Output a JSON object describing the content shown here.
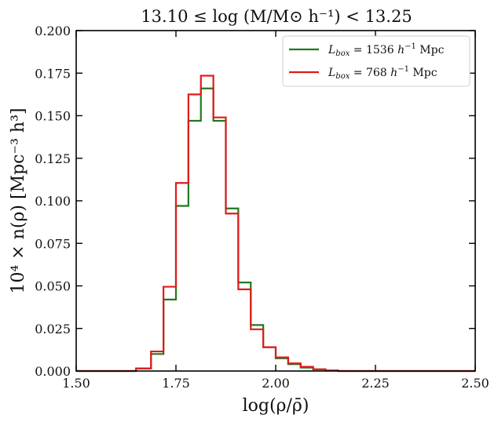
{
  "chart_data": {
    "type": "line",
    "style": "step-histogram",
    "title": "13.10 ≤ log (M/M⊙ h⁻¹) < 13.25",
    "xlabel": "log(ρ/ρ̄)",
    "ylabel": "10⁴ × n(ρ) [Mpc⁻³ h³]",
    "xlim": [
      1.5,
      2.5
    ],
    "ylim": [
      0.0,
      0.2
    ],
    "xticks": [
      "1.50",
      "1.75",
      "2.00",
      "2.25",
      "2.50"
    ],
    "yticks": [
      "0.000",
      "0.025",
      "0.050",
      "0.075",
      "0.100",
      "0.125",
      "0.150",
      "0.175",
      "0.200"
    ],
    "legend_position": "top-right",
    "bin_edges": [
      1.5,
      1.55,
      1.6,
      1.65,
      1.6875,
      1.71875,
      1.75,
      1.78125,
      1.8125,
      1.84375,
      1.875,
      1.90625,
      1.9375,
      1.96875,
      2.0,
      2.03125,
      2.0625,
      2.09375,
      2.125,
      2.15625,
      2.5
    ],
    "series": [
      {
        "name": "L_box = 1536 h⁻¹ Mpc",
        "legend_main": "L",
        "legend_sub": "box",
        "legend_rest": " = 1536 ",
        "legend_unit": "h",
        "legend_sup": "−1",
        "legend_mpc": " Mpc",
        "color": "#1f7a1f",
        "values": [
          0.0,
          0.0,
          0.0,
          0.0015,
          0.01,
          0.042,
          0.097,
          0.147,
          0.166,
          0.147,
          0.0955,
          0.052,
          0.027,
          0.014,
          0.0075,
          0.004,
          0.002,
          0.001,
          0.0003,
          0.0
        ]
      },
      {
        "name": "L_box = 768 h⁻¹ Mpc",
        "legend_main": "L",
        "legend_sub": "box",
        "legend_rest": " = 768 ",
        "legend_unit": "h",
        "legend_sup": "−1",
        "legend_mpc": " Mpc",
        "color": "#e01b1b",
        "values": [
          0.0,
          0.0,
          0.0,
          0.0015,
          0.0115,
          0.0495,
          0.1105,
          0.1625,
          0.1735,
          0.149,
          0.0925,
          0.048,
          0.0245,
          0.014,
          0.008,
          0.0045,
          0.0025,
          0.001,
          0.0003,
          0.0
        ]
      }
    ]
  }
}
